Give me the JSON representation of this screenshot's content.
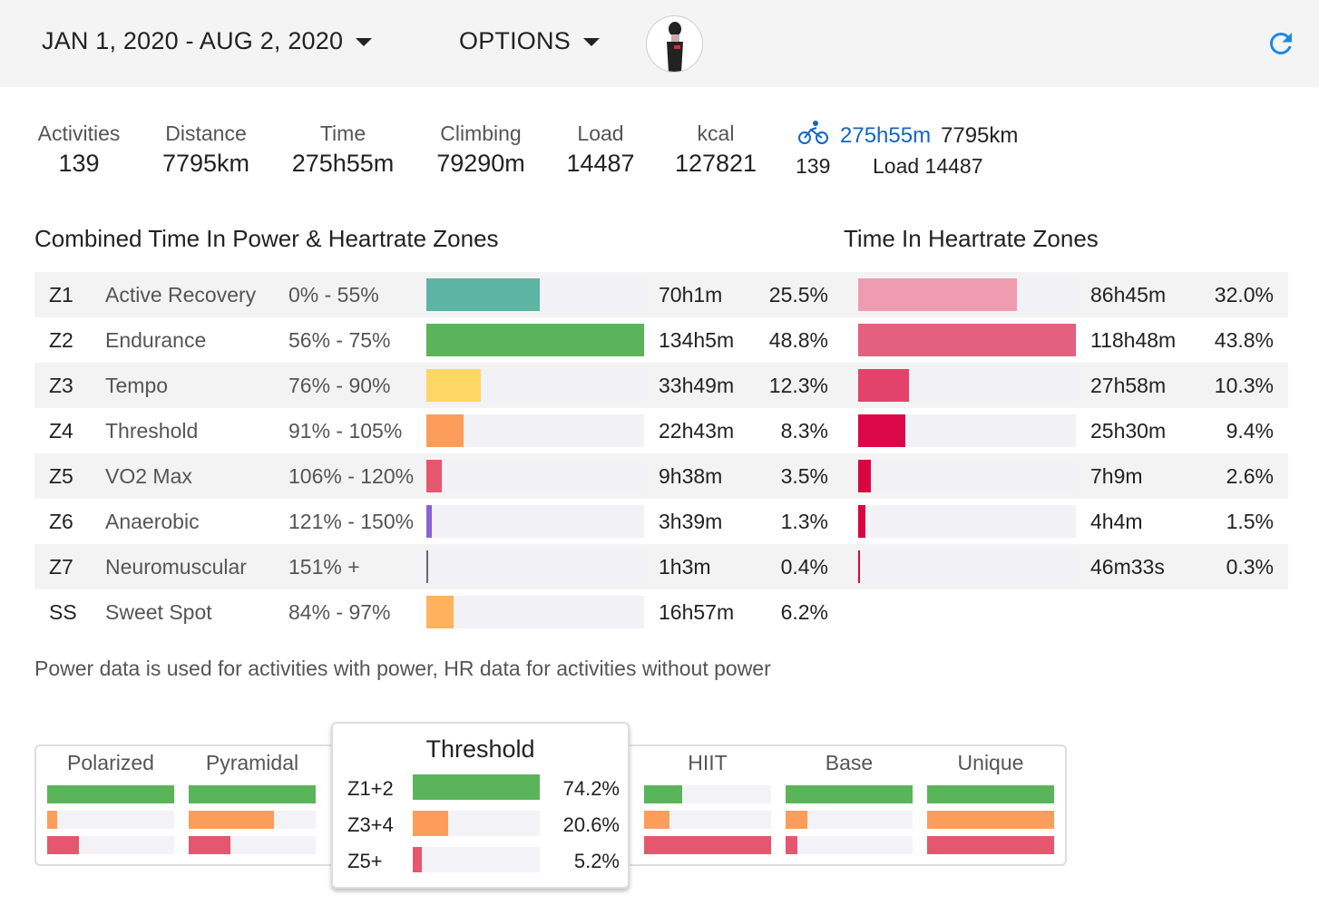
{
  "header": {
    "date_range": "JAN 1, 2020 - AUG 2, 2020",
    "options": "OPTIONS",
    "refresh_icon": "refresh-icon"
  },
  "stats": [
    {
      "label": "Activities",
      "value": "139"
    },
    {
      "label": "Distance",
      "value": "7795km"
    },
    {
      "label": "Time",
      "value": "275h55m"
    },
    {
      "label": "Climbing",
      "value": "79290m"
    },
    {
      "label": "Load",
      "value": "14487"
    },
    {
      "label": "kcal",
      "value": "127821"
    }
  ],
  "sport": {
    "icon": "bicycle-icon",
    "time": "275h55m",
    "distance": "7795km",
    "count": "139",
    "load": "Load 14487"
  },
  "power_title": "Combined Time In Power & Heartrate Zones",
  "hr_title": "Time In Heartrate Zones",
  "zones": [
    {
      "code": "Z1",
      "name": "Active Recovery",
      "range": "0% - 55%",
      "time": "70h1m",
      "pct": "25.5%",
      "color": "#5bb5a2",
      "hr_time": "86h45m",
      "hr_pct": "32.0%",
      "hr_color": "#ef9bb0"
    },
    {
      "code": "Z2",
      "name": "Endurance",
      "range": "56% - 75%",
      "time": "134h5m",
      "pct": "48.8%",
      "color": "#5ab55a",
      "hr_time": "118h48m",
      "hr_pct": "43.8%",
      "hr_color": "#e55f7e"
    },
    {
      "code": "Z3",
      "name": "Tempo",
      "range": "76% - 90%",
      "time": "33h49m",
      "pct": "12.3%",
      "color": "#fdd663",
      "hr_time": "27h58m",
      "hr_pct": "10.3%",
      "hr_color": "#e3426a"
    },
    {
      "code": "Z4",
      "name": "Threshold",
      "range": "91% - 105%",
      "time": "22h43m",
      "pct": "8.3%",
      "color": "#fd9d5b",
      "hr_time": "25h30m",
      "hr_pct": "9.4%",
      "hr_color": "#dc0747"
    },
    {
      "code": "Z5",
      "name": "VO2 Max",
      "range": "106% - 120%",
      "time": "9h38m",
      "pct": "3.5%",
      "color": "#e5576e",
      "hr_time": "7h9m",
      "hr_pct": "2.6%",
      "hr_color": "#d8063e"
    },
    {
      "code": "Z6",
      "name": "Anaerobic",
      "range": "121% - 150%",
      "time": "3h39m",
      "pct": "1.3%",
      "color": "#8a63d2",
      "hr_time": "4h4m",
      "hr_pct": "1.5%",
      "hr_color": "#d8063e"
    },
    {
      "code": "Z7",
      "name": "Neuromuscular",
      "range": "151% +",
      "time": "1h3m",
      "pct": "0.4%",
      "color": "#666677",
      "hr_time": "46m33s",
      "hr_pct": "0.3%",
      "hr_color": "#d8063e"
    },
    {
      "code": "SS",
      "name": "Sweet Spot",
      "range": "84% - 97%",
      "time": "16h57m",
      "pct": "6.2%",
      "color": "#ffb25e"
    }
  ],
  "note": "Power data is used for activities with power, HR data for activities without power",
  "distribution": {
    "colors": [
      "#5ab55a",
      "#fd9d5b",
      "#e5576e"
    ],
    "types": [
      {
        "name": "Polarized",
        "levels": [
          1,
          0.08,
          0.25
        ]
      },
      {
        "name": "Pyramidal",
        "levels": [
          1,
          0.67,
          0.33
        ]
      },
      {
        "name": "Threshold",
        "levels": [
          1,
          0.28,
          0.07
        ]
      },
      {
        "name": "HIIT",
        "levels": [
          0.3,
          0.2,
          1
        ]
      },
      {
        "name": "Base",
        "levels": [
          1,
          0.17,
          0.09
        ]
      },
      {
        "name": "Unique",
        "levels": [
          1,
          1,
          1
        ]
      }
    ],
    "selected": {
      "name": "Threshold",
      "rows": [
        {
          "label": "Z1+2",
          "pct": "74.2%"
        },
        {
          "label": "Z3+4",
          "pct": "20.6%"
        },
        {
          "label": "Z5+",
          "pct": "5.2%"
        }
      ]
    }
  }
}
